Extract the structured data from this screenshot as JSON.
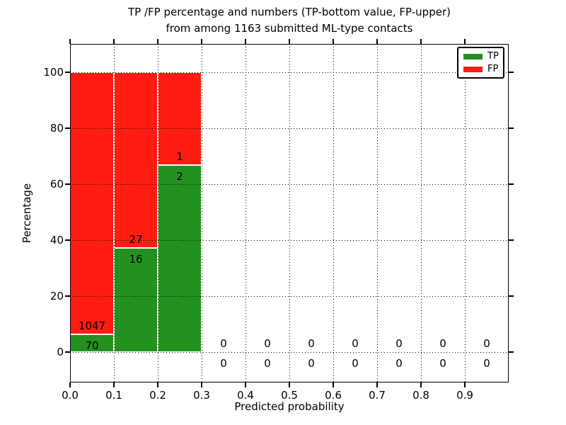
{
  "figure": {
    "background": "#ffffff"
  },
  "chart_data": {
    "type": "bar",
    "stacked": true,
    "normalized": "percent",
    "title_line1": "TP /FP percentage and numbers (TP-bottom value, FP-upper)",
    "title_line2": "from among 1163 submitted ML-type contacts",
    "total_submitted": 1163,
    "xlabel": "Predicted probability",
    "ylabel": "Percentage",
    "xlim": [
      0.0,
      1.0
    ],
    "ylim": [
      -11,
      110
    ],
    "grid": true,
    "grid_style": "dotted",
    "xtick_labels": [
      "0.0",
      "0.1",
      "0.2",
      "0.3",
      "0.4",
      "0.5",
      "0.6",
      "0.7",
      "0.8",
      "0.9"
    ],
    "ytick_values": [
      0,
      20,
      40,
      60,
      80,
      100
    ],
    "colors": {
      "tp": "#229120",
      "fp": "#fe1c13"
    },
    "legend": {
      "position": "upper-right",
      "entries": [
        {
          "key": "tp",
          "label": "TP",
          "color": "#229120"
        },
        {
          "key": "fp",
          "label": "FP",
          "color": "#fe1c13"
        }
      ]
    },
    "bins": [
      {
        "range": [
          0.0,
          0.1
        ],
        "tp_count": 70,
        "fp_count": 1047
      },
      {
        "range": [
          0.1,
          0.2
        ],
        "tp_count": 16,
        "fp_count": 27
      },
      {
        "range": [
          0.2,
          0.3
        ],
        "tp_count": 2,
        "fp_count": 1
      },
      {
        "range": [
          0.3,
          0.4
        ],
        "tp_count": 0,
        "fp_count": 0
      },
      {
        "range": [
          0.4,
          0.5
        ],
        "tp_count": 0,
        "fp_count": 0
      },
      {
        "range": [
          0.5,
          0.6
        ],
        "tp_count": 0,
        "fp_count": 0
      },
      {
        "range": [
          0.6,
          0.7
        ],
        "tp_count": 0,
        "fp_count": 0
      },
      {
        "range": [
          0.7,
          0.8
        ],
        "tp_count": 0,
        "fp_count": 0
      },
      {
        "range": [
          0.8,
          0.9
        ],
        "tp_count": 0,
        "fp_count": 0
      },
      {
        "range": [
          0.9,
          1.0
        ],
        "tp_count": 0,
        "fp_count": 0
      }
    ]
  }
}
